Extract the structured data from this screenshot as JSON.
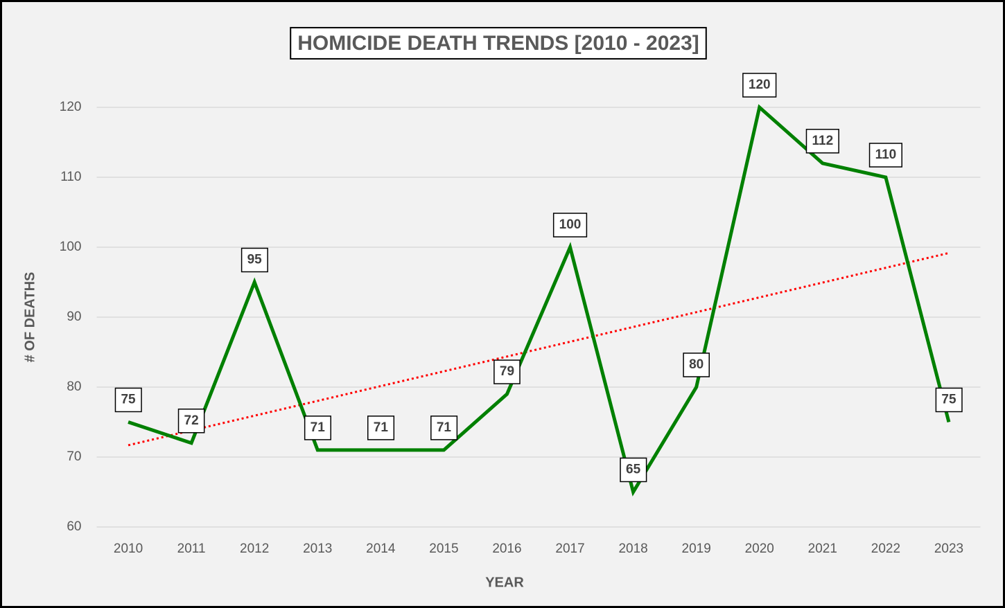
{
  "chart_data": {
    "type": "line",
    "title": "HOMICIDE DEATH TRENDS [2010 - 2023]",
    "x_label": "YEAR",
    "y_label": "# OF DEATHS",
    "categories": [
      "2010",
      "2011",
      "2012",
      "2013",
      "2014",
      "2015",
      "2016",
      "2017",
      "2018",
      "2019",
      "2020",
      "2021",
      "2022",
      "2023"
    ],
    "values": [
      75,
      72,
      95,
      71,
      71,
      71,
      79,
      100,
      65,
      80,
      120,
      112,
      110,
      75
    ],
    "color": "#008000",
    "trendline": true,
    "trendline_color": "#ff0000",
    "ylim": [
      60,
      120
    ],
    "yticks": [
      60,
      70,
      80,
      90,
      100,
      110,
      120
    ],
    "grid": true,
    "data_labels": true
  }
}
